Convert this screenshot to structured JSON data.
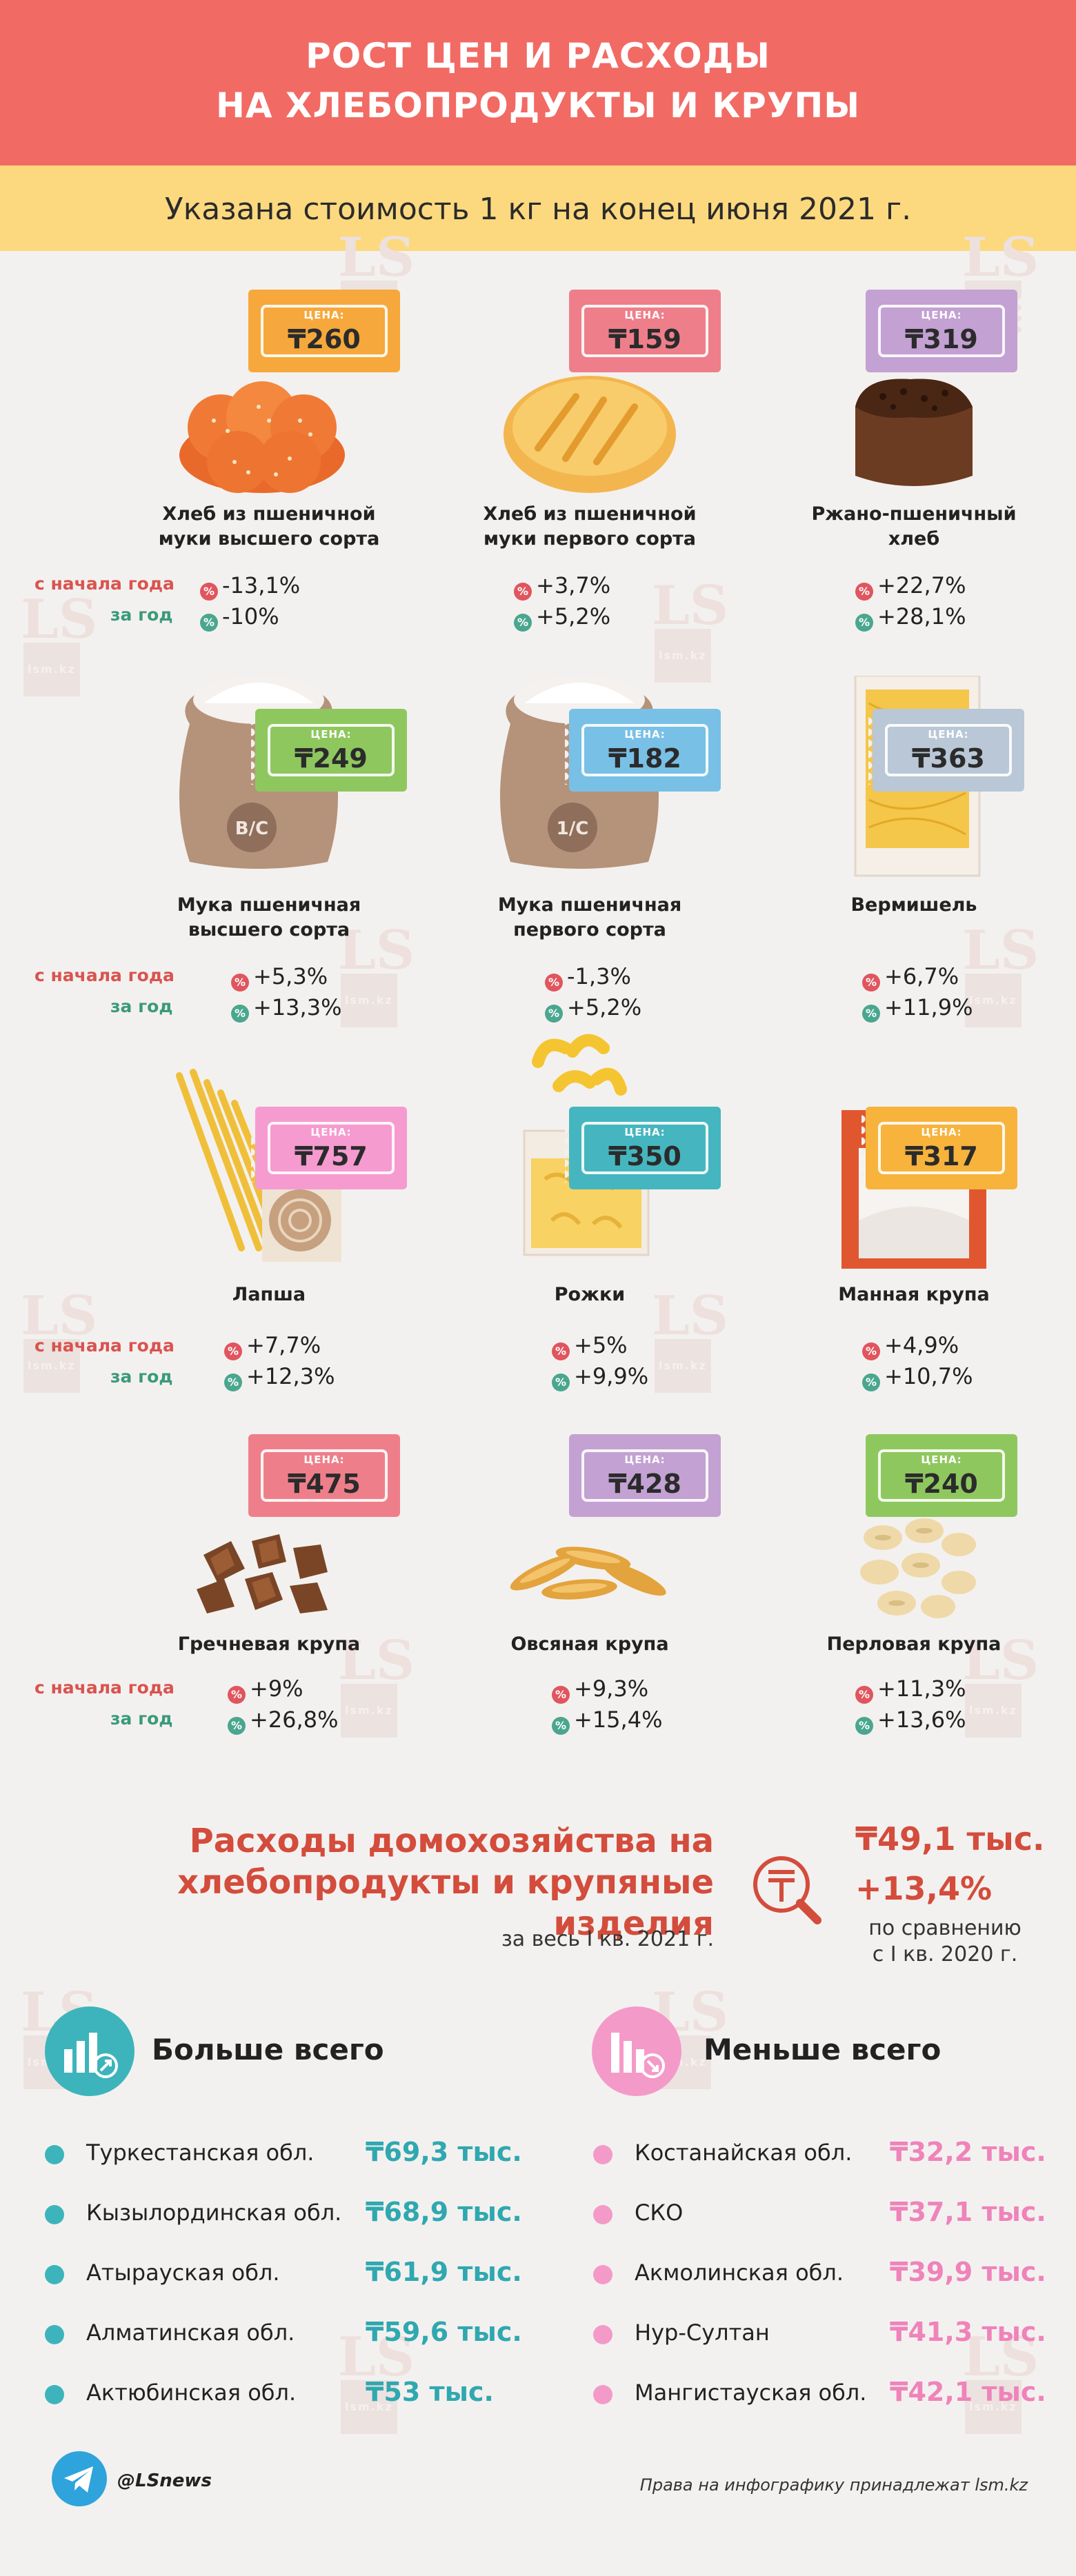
{
  "header": {
    "line1": "РОСТ ЦЕН И РАСХОДЫ",
    "line2": "НА ХЛЕБОПРОДУКТЫ И КРУПЫ"
  },
  "subheader": "Указана стоимость 1 кг на конец июня 2021 г.",
  "watermark": {
    "logo": "LS",
    "domain": "lsm.kz"
  },
  "price_label": "ЦЕНА:",
  "stat_labels": {
    "since_year_start": "с начала года",
    "per_year": "за год"
  },
  "products": [
    {
      "name1": "Хлеб из пшеничной",
      "name2": "муки высшего сорта",
      "price": "₸260",
      "ytd": "-13,1%",
      "yoy": "-10%",
      "color": "#f6a83c",
      "icon": "buns-icon"
    },
    {
      "name1": "Хлеб из пшеничной",
      "name2": "муки первого сорта",
      "price": "₸159",
      "ytd": "+3,7%",
      "yoy": "+5,2%",
      "color": "#ee7f8a",
      "icon": "loaf-icon"
    },
    {
      "name1": "Ржано-пшеничный",
      "name2": "хлеб",
      "price": "₸319",
      "ytd": "+22,7%",
      "yoy": "+28,1%",
      "color": "#c3a1d3",
      "icon": "rye-bread-icon"
    },
    {
      "name1": "Мука пшеничная",
      "name2": "высшего сорта",
      "price": "₸249",
      "ytd": "+5,3%",
      "yoy": "+13,3%",
      "color": "#8fc75f",
      "icon": "flour-sack-icon",
      "sack": "В/С"
    },
    {
      "name1": "Мука пшеничная",
      "name2": "первого сорта",
      "price": "₸182",
      "ytd": "-1,3%",
      "yoy": "+5,2%",
      "color": "#79c0e6",
      "icon": "flour-sack-icon",
      "sack": "1/С"
    },
    {
      "name1": "Вермишель",
      "name2": "",
      "price": "₸363",
      "ytd": "+6,7%",
      "yoy": "+11,9%",
      "color": "#b9c7d6",
      "icon": "vermicelli-icon"
    },
    {
      "name1": "Лапша",
      "name2": "",
      "price": "₸757",
      "ytd": "+7,7%",
      "yoy": "+12,3%",
      "color": "#f59bd0",
      "icon": "noodles-icon"
    },
    {
      "name1": "Рожки",
      "name2": "",
      "price": "₸350",
      "ytd": "+5%",
      "yoy": "+9,9%",
      "color": "#45b6bf",
      "icon": "macaroni-icon"
    },
    {
      "name1": "Манная крупа",
      "name2": "",
      "price": "₸317",
      "ytd": "+4,9%",
      "yoy": "+10,7%",
      "color": "#f7b33c",
      "icon": "semolina-icon"
    },
    {
      "name1": "Гречневая крупа",
      "name2": "",
      "price": "₸475",
      "ytd": "+9%",
      "yoy": "+26,8%",
      "color": "#ee7f8a",
      "icon": "buckwheat-icon"
    },
    {
      "name1": "Овсяная крупа",
      "name2": "",
      "price": "₸428",
      "ytd": "+9,3%",
      "yoy": "+15,4%",
      "color": "#c3a1d3",
      "icon": "oats-icon"
    },
    {
      "name1": "Перловая крупа",
      "name2": "",
      "price": "₸240",
      "ytd": "+11,3%",
      "yoy": "+13,6%",
      "color": "#8fc75f",
      "icon": "barley-icon"
    }
  ],
  "expenses": {
    "title1": "Расходы домохозяйства на",
    "title2": "хлебопродукты и крупяные изделия",
    "period": "за весь I кв. 2021 г.",
    "value": "₸49,1 тыс.",
    "change": "+13,4%",
    "compare1": "по сравнению",
    "compare2": "с I кв. 2020 г."
  },
  "most": {
    "title": "Больше всего",
    "rows": [
      {
        "region": "Туркестанская обл.",
        "value": "₸69,3 тыс."
      },
      {
        "region": "Кызылординская обл.",
        "value": "₸68,9 тыс."
      },
      {
        "region": "Атырауская обл.",
        "value": "₸61,9 тыс."
      },
      {
        "region": "Алматинская обл.",
        "value": "₸59,6 тыс."
      },
      {
        "region": "Актюбинская обл.",
        "value": "₸53 тыс."
      }
    ]
  },
  "least": {
    "title": "Меньше всего",
    "rows": [
      {
        "region": "Костанайская обл.",
        "value": "₸32,2 тыс."
      },
      {
        "region": "СКО",
        "value": "₸37,1 тыс."
      },
      {
        "region": "Акмолинская обл.",
        "value": "₸39,9 тыс."
      },
      {
        "region": "Нур-Султан",
        "value": "₸41,3 тыс."
      },
      {
        "region": "Мангистауская обл.",
        "value": "₸42,1 тыс."
      }
    ]
  },
  "footer": {
    "handle": "@LSnews",
    "rights": "Права на инфографику принадлежат lsm.kz"
  }
}
